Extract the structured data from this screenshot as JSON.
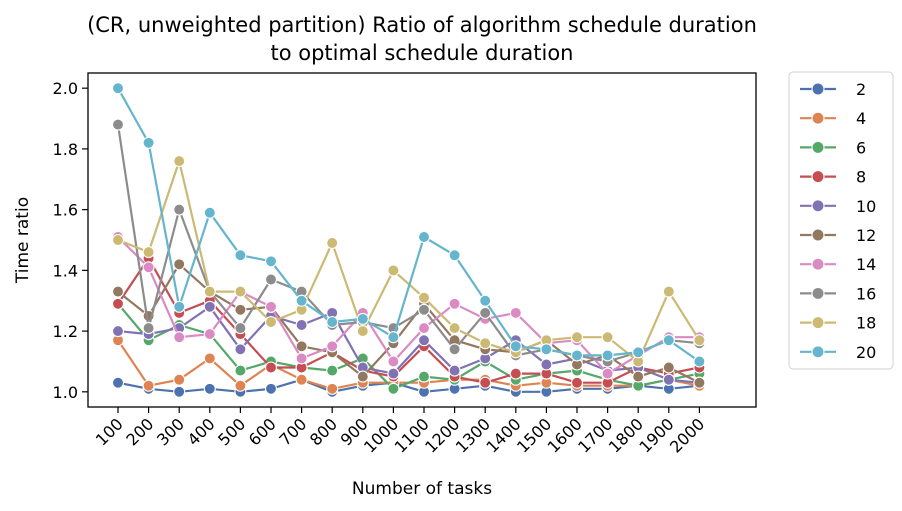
{
  "chart_data": {
    "type": "line",
    "title_line1": "(CR, unweighted partition) Ratio of algorithm schedule duration",
    "title_line2": "to optimal schedule duration",
    "xlabel": "Number of tasks",
    "ylabel": "Time ratio",
    "ylim": [
      0.95,
      2.05
    ],
    "yticks": [
      "1.0",
      "1.2",
      "1.4",
      "1.6",
      "1.8",
      "2.0"
    ],
    "categories": [
      "100",
      "200",
      "300",
      "400",
      "500",
      "600",
      "700",
      "800",
      "900",
      "1000",
      "1100",
      "1200",
      "1300",
      "1400",
      "1500",
      "1600",
      "1700",
      "1800",
      "1900",
      "2000"
    ],
    "legend_position": "outside-right",
    "grid": false,
    "series": [
      {
        "name": "2",
        "color": "#4c72b0",
        "x": [
          100,
          200,
          300,
          400,
          500,
          600,
          700,
          800,
          900,
          1000,
          1100,
          1200,
          1300,
          1400,
          1500,
          1600,
          1700,
          1800,
          1900,
          2000
        ],
        "values": [
          1.03,
          1.01,
          1.0,
          1.01,
          1.0,
          1.01,
          1.04,
          1.0,
          1.02,
          1.03,
          1.0,
          1.01,
          1.02,
          1.0,
          1.0,
          1.01,
          1.01,
          1.02,
          1.01,
          1.02
        ]
      },
      {
        "name": "4",
        "color": "#dd8452",
        "x": [
          100,
          200,
          300,
          400,
          500,
          600,
          700,
          800,
          900,
          1000,
          1100,
          1200,
          1300,
          1400,
          1500,
          1600,
          1700,
          1800,
          1900,
          2000
        ],
        "values": [
          1.17,
          1.02,
          1.04,
          1.11,
          1.02,
          1.09,
          1.04,
          1.01,
          1.03,
          1.03,
          1.03,
          1.04,
          1.04,
          1.02,
          1.03,
          1.02,
          1.02,
          1.02,
          1.04,
          1.02
        ]
      },
      {
        "name": "6",
        "color": "#55a868",
        "x": [
          100,
          200,
          300,
          400,
          500,
          600,
          700,
          800,
          900,
          1000,
          1100,
          1200,
          1300,
          1400,
          1500,
          1600,
          1700,
          1800,
          1900,
          2000
        ],
        "values": [
          1.29,
          1.17,
          1.22,
          1.19,
          1.07,
          1.1,
          1.08,
          1.07,
          1.11,
          1.01,
          1.05,
          1.04,
          1.1,
          1.04,
          1.06,
          1.07,
          1.04,
          1.02,
          1.04,
          1.06
        ]
      },
      {
        "name": "8",
        "color": "#c44e52",
        "x": [
          100,
          200,
          300,
          400,
          500,
          600,
          700,
          800,
          900,
          1000,
          1100,
          1200,
          1300,
          1400,
          1500,
          1600,
          1700,
          1800,
          1900,
          2000
        ],
        "values": [
          1.29,
          1.44,
          1.26,
          1.3,
          1.19,
          1.08,
          1.08,
          1.13,
          1.07,
          1.05,
          1.15,
          1.05,
          1.03,
          1.06,
          1.06,
          1.03,
          1.03,
          1.08,
          1.06,
          1.08
        ]
      },
      {
        "name": "10",
        "color": "#8172b3",
        "x": [
          100,
          200,
          300,
          400,
          500,
          600,
          700,
          800,
          900,
          1000,
          1100,
          1200,
          1300,
          1400,
          1500,
          1600,
          1700,
          1800,
          1900,
          2000
        ],
        "values": [
          1.2,
          1.19,
          1.21,
          1.28,
          1.14,
          1.25,
          1.22,
          1.26,
          1.08,
          1.06,
          1.17,
          1.07,
          1.11,
          1.17,
          1.09,
          1.11,
          1.07,
          1.08,
          1.04,
          1.03
        ]
      },
      {
        "name": "12",
        "color": "#937860",
        "x": [
          100,
          200,
          300,
          400,
          500,
          600,
          700,
          800,
          900,
          1000,
          1100,
          1200,
          1300,
          1400,
          1500,
          1600,
          1700,
          1800,
          1900,
          2000
        ],
        "values": [
          1.33,
          1.25,
          1.42,
          1.33,
          1.27,
          1.28,
          1.15,
          1.13,
          1.05,
          1.16,
          1.29,
          1.17,
          1.14,
          1.13,
          1.17,
          1.09,
          1.12,
          1.05,
          1.08,
          1.03
        ]
      },
      {
        "name": "14",
        "color": "#da8bc3",
        "x": [
          100,
          200,
          300,
          400,
          500,
          600,
          700,
          800,
          900,
          1000,
          1100,
          1200,
          1300,
          1400,
          1500,
          1600,
          1700,
          1800,
          1900,
          2000
        ],
        "values": [
          1.51,
          1.41,
          1.18,
          1.19,
          1.33,
          1.28,
          1.11,
          1.15,
          1.26,
          1.1,
          1.21,
          1.29,
          1.24,
          1.26,
          1.16,
          1.17,
          1.06,
          1.12,
          1.18,
          1.18
        ]
      },
      {
        "name": "16",
        "color": "#8c8c8c",
        "x": [
          100,
          200,
          300,
          400,
          500,
          600,
          700,
          800,
          900,
          1000,
          1100,
          1200,
          1300,
          1400,
          1500,
          1600,
          1700,
          1800,
          1900,
          2000
        ],
        "values": [
          1.88,
          1.21,
          1.6,
          1.33,
          1.21,
          1.37,
          1.33,
          1.22,
          1.23,
          1.21,
          1.27,
          1.14,
          1.26,
          1.12,
          1.14,
          1.12,
          1.1,
          1.13,
          1.17,
          1.16
        ]
      },
      {
        "name": "18",
        "color": "#ccb974",
        "x": [
          100,
          200,
          300,
          400,
          500,
          600,
          700,
          800,
          900,
          1000,
          1100,
          1200,
          1300,
          1400,
          1500,
          1600,
          1700,
          1800,
          1900,
          2000
        ],
        "values": [
          1.5,
          1.46,
          1.76,
          1.33,
          1.33,
          1.23,
          1.27,
          1.49,
          1.2,
          1.4,
          1.31,
          1.21,
          1.16,
          1.13,
          1.17,
          1.18,
          1.18,
          1.1,
          1.33,
          1.17
        ]
      },
      {
        "name": "20",
        "color": "#64b5cd",
        "x": [
          100,
          200,
          300,
          400,
          500,
          600,
          700,
          800,
          900,
          1000,
          1100,
          1200,
          1300,
          1400,
          1500,
          1600,
          1700,
          1800,
          1900,
          2000
        ],
        "values": [
          2.0,
          1.82,
          1.28,
          1.59,
          1.45,
          1.43,
          1.3,
          1.23,
          1.24,
          1.18,
          1.51,
          1.45,
          1.3,
          1.15,
          1.14,
          1.12,
          1.12,
          1.13,
          1.17,
          1.1
        ]
      }
    ]
  }
}
